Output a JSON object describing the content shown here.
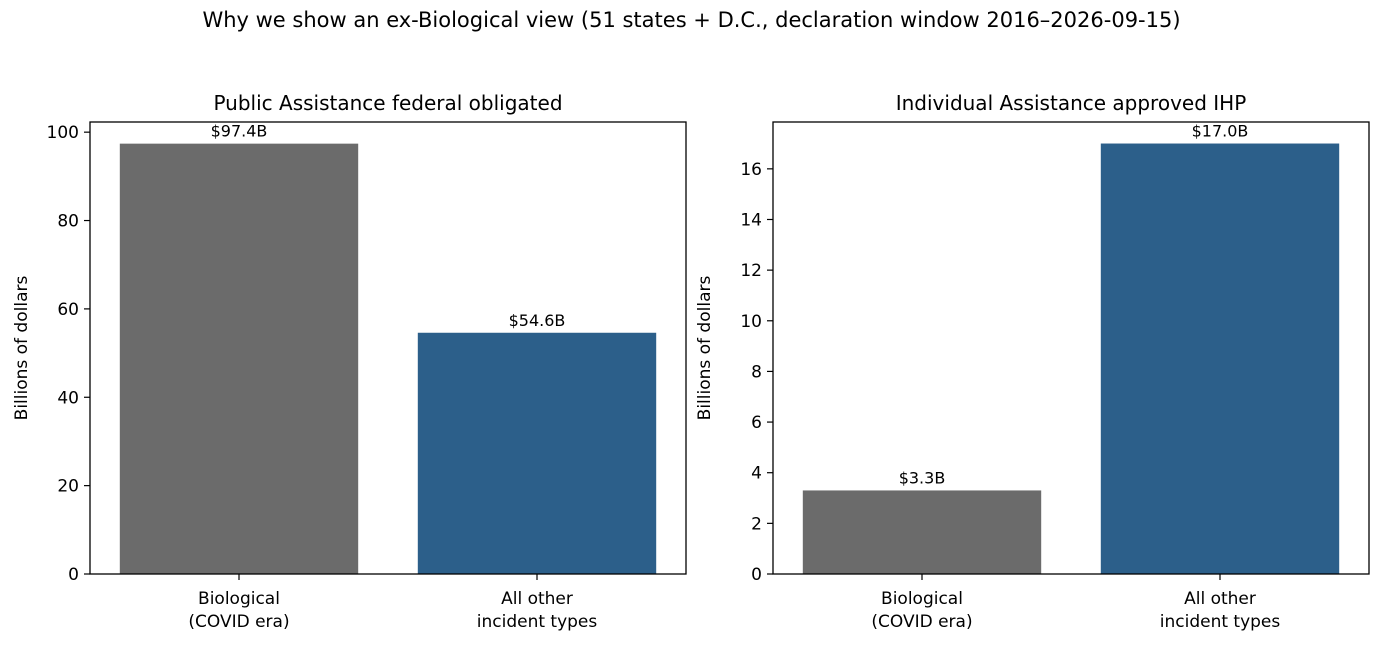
{
  "figure": {
    "suptitle": "Why we show an ex-Biological view (51 states + D.C., declaration window 2016–2026-09-15)"
  },
  "chart_data": [
    {
      "type": "bar",
      "title": "Public Assistance federal obligated",
      "xlabel": "",
      "ylabel": "Billions of dollars",
      "categories": [
        [
          "Biological",
          "(COVID era)"
        ],
        [
          "All other",
          "incident types"
        ]
      ],
      "values": [
        97.4,
        54.6
      ],
      "data_labels": [
        "$97.4B",
        "$54.6B"
      ],
      "colors": [
        "#6b6b6b",
        "#2c5f8a"
      ],
      "ylim": [
        0,
        102.3
      ],
      "yticks": [
        0,
        20,
        40,
        60,
        80,
        100
      ],
      "grid": false
    },
    {
      "type": "bar",
      "title": "Individual Assistance approved IHP",
      "xlabel": "",
      "ylabel": "Billions of dollars",
      "categories": [
        [
          "Biological",
          "(COVID era)"
        ],
        [
          "All other",
          "incident types"
        ]
      ],
      "values": [
        3.3,
        17.0
      ],
      "data_labels": [
        "$3.3B",
        "$17.0B"
      ],
      "colors": [
        "#6b6b6b",
        "#2c5f8a"
      ],
      "ylim": [
        0,
        17.85
      ],
      "yticks": [
        0,
        2,
        4,
        6,
        8,
        10,
        12,
        14,
        16
      ],
      "grid": false
    }
  ]
}
